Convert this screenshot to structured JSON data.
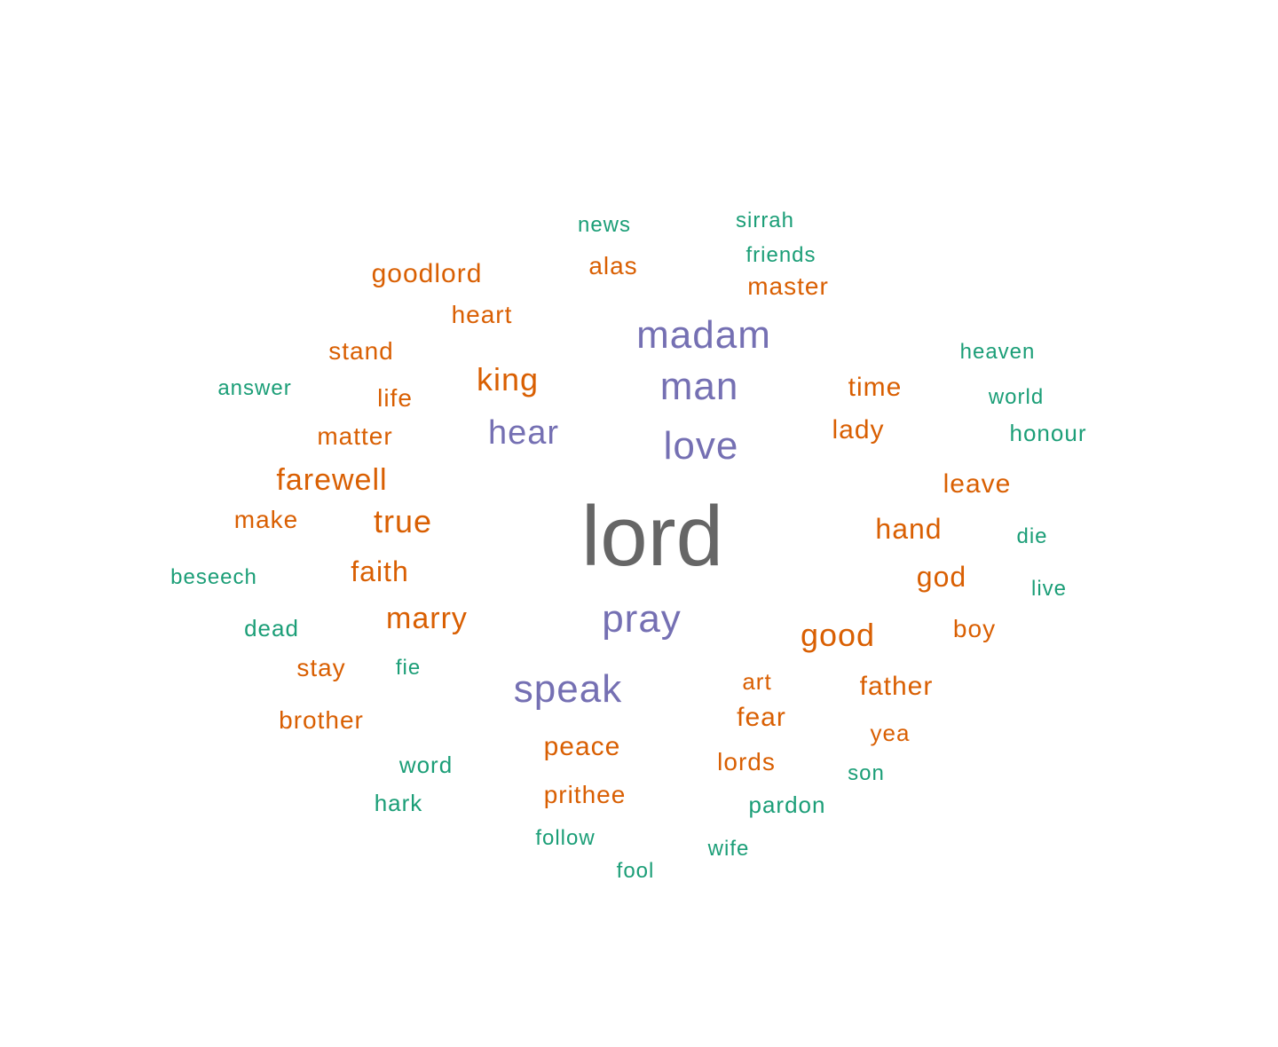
{
  "chart_data": {
    "type": "wordcloud",
    "colors": {
      "top": "#666666",
      "high": "#7570b3",
      "mid": "#d95f02",
      "low": "#1b9e77"
    },
    "words": [
      {
        "text": "lord",
        "tier": "top"
      },
      {
        "text": "madam",
        "tier": "high"
      },
      {
        "text": "man",
        "tier": "high"
      },
      {
        "text": "love",
        "tier": "high"
      },
      {
        "text": "hear",
        "tier": "high"
      },
      {
        "text": "pray",
        "tier": "high"
      },
      {
        "text": "speak",
        "tier": "high"
      },
      {
        "text": "goodlord",
        "tier": "mid"
      },
      {
        "text": "alas",
        "tier": "mid"
      },
      {
        "text": "master",
        "tier": "mid"
      },
      {
        "text": "heart",
        "tier": "mid"
      },
      {
        "text": "stand",
        "tier": "mid"
      },
      {
        "text": "king",
        "tier": "mid"
      },
      {
        "text": "life",
        "tier": "mid"
      },
      {
        "text": "time",
        "tier": "mid"
      },
      {
        "text": "matter",
        "tier": "mid"
      },
      {
        "text": "lady",
        "tier": "mid"
      },
      {
        "text": "farewell",
        "tier": "mid"
      },
      {
        "text": "leave",
        "tier": "mid"
      },
      {
        "text": "make",
        "tier": "mid"
      },
      {
        "text": "true",
        "tier": "mid"
      },
      {
        "text": "hand",
        "tier": "mid"
      },
      {
        "text": "faith",
        "tier": "mid"
      },
      {
        "text": "god",
        "tier": "mid"
      },
      {
        "text": "marry",
        "tier": "mid"
      },
      {
        "text": "good",
        "tier": "mid"
      },
      {
        "text": "boy",
        "tier": "mid"
      },
      {
        "text": "stay",
        "tier": "mid"
      },
      {
        "text": "art",
        "tier": "mid"
      },
      {
        "text": "father",
        "tier": "mid"
      },
      {
        "text": "fear",
        "tier": "mid"
      },
      {
        "text": "brother",
        "tier": "mid"
      },
      {
        "text": "yea",
        "tier": "mid"
      },
      {
        "text": "peace",
        "tier": "mid"
      },
      {
        "text": "lords",
        "tier": "mid"
      },
      {
        "text": "prithee",
        "tier": "mid"
      },
      {
        "text": "news",
        "tier": "low"
      },
      {
        "text": "sirrah",
        "tier": "low"
      },
      {
        "text": "friends",
        "tier": "low"
      },
      {
        "text": "heaven",
        "tier": "low"
      },
      {
        "text": "answer",
        "tier": "low"
      },
      {
        "text": "world",
        "tier": "low"
      },
      {
        "text": "honour",
        "tier": "low"
      },
      {
        "text": "die",
        "tier": "low"
      },
      {
        "text": "beseech",
        "tier": "low"
      },
      {
        "text": "live",
        "tier": "low"
      },
      {
        "text": "dead",
        "tier": "low"
      },
      {
        "text": "fie",
        "tier": "low"
      },
      {
        "text": "word",
        "tier": "low"
      },
      {
        "text": "son",
        "tier": "low"
      },
      {
        "text": "hark",
        "tier": "low"
      },
      {
        "text": "pardon",
        "tier": "low"
      },
      {
        "text": "follow",
        "tier": "low"
      },
      {
        "text": "wife",
        "tier": "low"
      },
      {
        "text": "fool",
        "tier": "low"
      }
    ]
  }
}
